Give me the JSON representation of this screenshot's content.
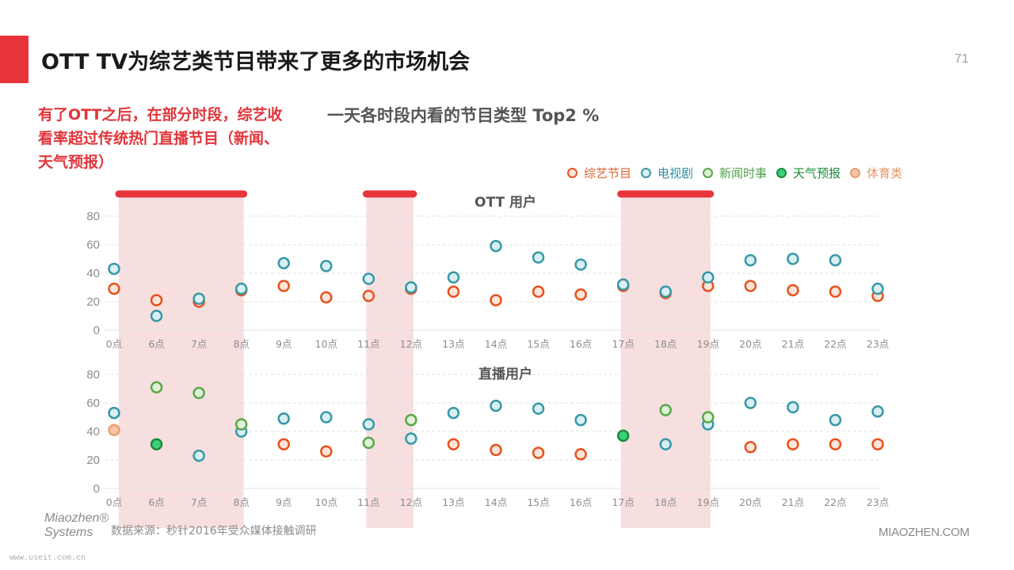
{
  "header": {
    "title": "OTT TV为综艺类节目带来了更多的市场机会",
    "page_number": "71"
  },
  "callout": {
    "text": "有了OTT之后，在部分时段，综艺收看率超过传统热门直播节目（新闻、天气预报）"
  },
  "footer": {
    "source": "数据来源：秒针2016年受众媒体接触调研",
    "brand": "MIAOZHEN.COM",
    "logo_line1": "Miaozhen®",
    "logo_line2": "Systems",
    "watermark": "www.useit.com.cn"
  },
  "colors": {
    "accent": "#e8353b",
    "highlight_band": "#f6dcdc",
    "grid": "#e2e2e2"
  },
  "legend": [
    {
      "name": "综艺节目",
      "color": "#e8521d",
      "text_color": "#e0662f"
    },
    {
      "name": "电视剧",
      "color": "#3798a8",
      "text_color": "#2f8fa0"
    },
    {
      "name": "新闻时事",
      "color": "#59a849",
      "text_color": "#4ea048"
    },
    {
      "name": "天气预报",
      "color": "#1a8c3a",
      "text_color": "#1a8c3a"
    },
    {
      "name": "体育类",
      "color": "#eb9f70",
      "text_color": "#e49568"
    }
  ],
  "chart_data": {
    "type": "scatter",
    "title": "一天各时段内看的节目类型 Top2 %",
    "categories": [
      "0点",
      "6点",
      "7点",
      "8点",
      "9点",
      "10点",
      "11点",
      "12点",
      "13点",
      "14点",
      "15点",
      "16点",
      "17点",
      "18点",
      "19点",
      "20点",
      "21点",
      "22点",
      "23点"
    ],
    "highlight_ranges": [
      [
        "0点",
        "8点"
      ],
      [
        "11点",
        "12点"
      ],
      [
        "17点",
        "19点"
      ]
    ],
    "panels": [
      {
        "title": "OTT 用户",
        "ylim": [
          0,
          80
        ],
        "yticks": [
          0,
          20,
          40,
          60,
          80
        ],
        "series": [
          {
            "name": "综艺节目",
            "values": [
              29,
              21,
              20,
              28,
              31,
              23,
              24,
              29,
              27,
              21,
              27,
              25,
              31,
              26,
              31,
              31,
              28,
              27,
              24
            ]
          },
          {
            "name": "电视剧",
            "values": [
              43,
              10,
              22,
              29,
              47,
              45,
              36,
              30,
              37,
              59,
              51,
              46,
              32,
              27,
              37,
              49,
              50,
              49,
              29
            ]
          }
        ]
      },
      {
        "title": "直播用户",
        "ylim": [
          0,
          80
        ],
        "yticks": [
          0,
          20,
          40,
          60,
          80
        ],
        "series": [
          {
            "name": "综艺节目",
            "values": [
              null,
              null,
              null,
              null,
              31,
              26,
              null,
              null,
              31,
              27,
              25,
              24,
              null,
              null,
              null,
              29,
              31,
              31,
              31
            ]
          },
          {
            "name": "电视剧",
            "values": [
              53,
              null,
              23,
              40,
              49,
              50,
              45,
              35,
              53,
              58,
              56,
              48,
              null,
              31,
              45,
              60,
              57,
              48,
              54
            ]
          },
          {
            "name": "新闻时事",
            "values": [
              null,
              71,
              67,
              45,
              null,
              null,
              32,
              48,
              null,
              null,
              null,
              null,
              null,
              55,
              50,
              null,
              null,
              null,
              null
            ]
          },
          {
            "name": "天气预报",
            "values": [
              null,
              31,
              null,
              null,
              null,
              null,
              null,
              null,
              null,
              null,
              null,
              null,
              37,
              null,
              null,
              null,
              null,
              null,
              null
            ]
          },
          {
            "name": "体育类",
            "values": [
              41,
              null,
              null,
              null,
              null,
              null,
              null,
              null,
              null,
              null,
              null,
              null,
              null,
              null,
              null,
              null,
              null,
              null,
              null
            ]
          }
        ]
      }
    ]
  }
}
